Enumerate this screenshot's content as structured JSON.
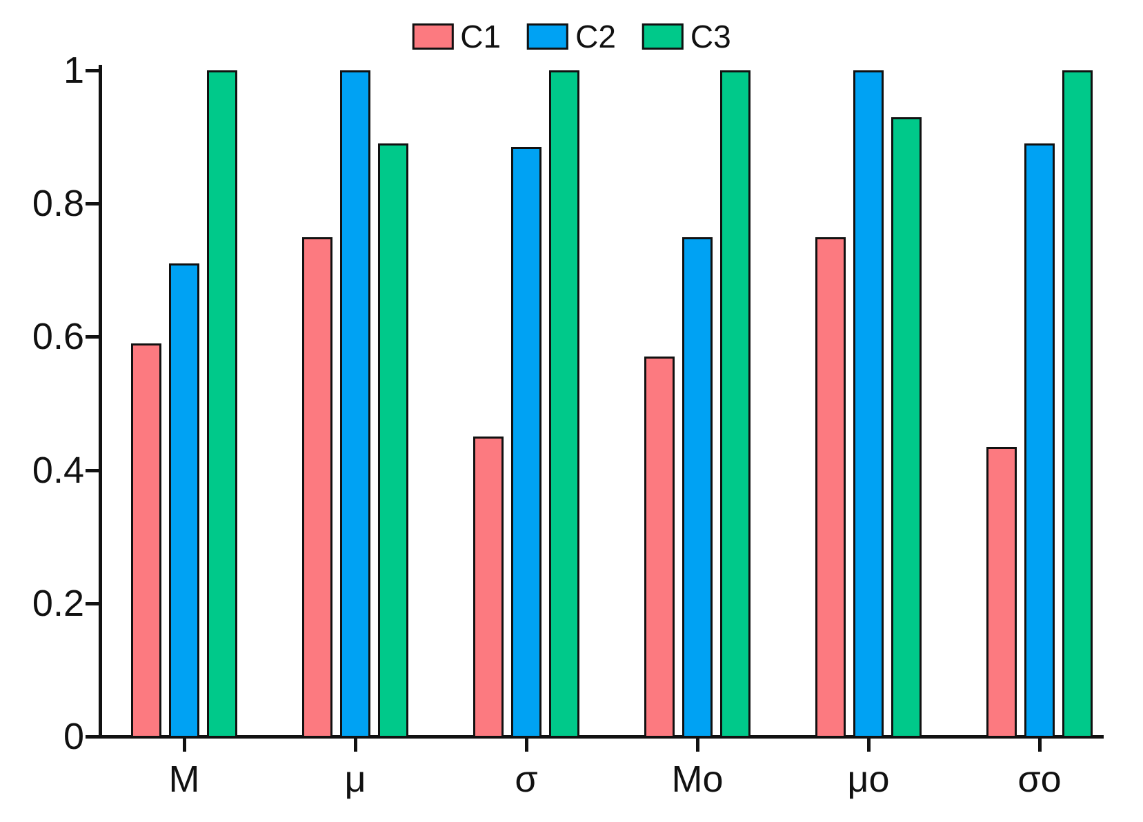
{
  "chart_data": {
    "type": "bar",
    "title": "",
    "xlabel": "",
    "ylabel": "",
    "categories": [
      "M",
      "μ",
      "σ",
      "Mo",
      "μo",
      "σo"
    ],
    "series": [
      {
        "name": "C1",
        "color": "#FC7A80",
        "values": [
          0.59,
          0.75,
          0.45,
          0.57,
          0.75,
          0.435
        ]
      },
      {
        "name": "C2",
        "color": "#00A2F3",
        "values": [
          0.71,
          1.0,
          0.885,
          0.75,
          1.0,
          0.89
        ]
      },
      {
        "name": "C3",
        "color": "#00C98A",
        "values": [
          1.0,
          0.89,
          1.0,
          1.0,
          0.93,
          1.0
        ]
      }
    ],
    "ylim": [
      0,
      1
    ],
    "yticks": [
      0,
      0.2,
      0.4,
      0.6,
      0.8,
      1
    ],
    "ytick_labels": [
      "0",
      "0.2",
      "0.4",
      "0.6",
      "0.8",
      "1"
    ],
    "grid": false,
    "legend_position": "top-center",
    "background_color": "#ffffff",
    "axis_color": "#111111",
    "bar_outline_color": "#111111"
  }
}
